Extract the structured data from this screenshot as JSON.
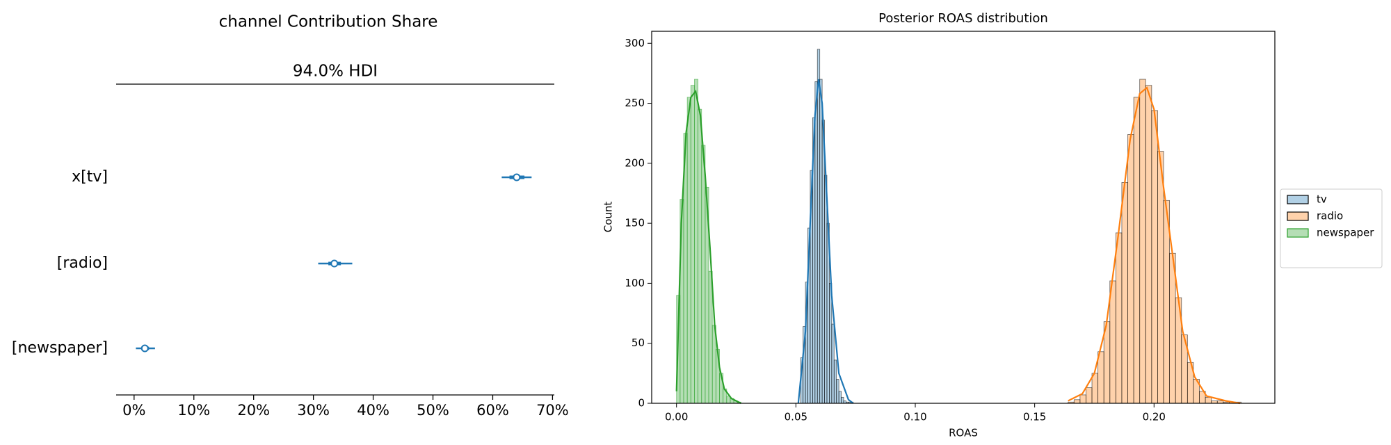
{
  "chart_data": [
    {
      "type": "forest",
      "title": "channel Contribution Share",
      "subtitle": "94.0% HDI",
      "categories": [
        "x[tv]",
        "[radio]",
        "[newspaper]"
      ],
      "means": [
        64,
        33.5,
        1.8
      ],
      "hdi_low": [
        61.5,
        30.8,
        0.3
      ],
      "hdi_high": [
        66.5,
        36.5,
        3.5
      ],
      "inner_low": [
        62.8,
        32.5,
        1.2
      ],
      "inner_high": [
        65.3,
        34.6,
        2.5
      ],
      "color": "#1f77b4",
      "xlim": [
        -3,
        70.3
      ],
      "xticks": [
        {
          "value": 0,
          "label": "0%"
        },
        {
          "value": 10,
          "label": "10%"
        },
        {
          "value": 20,
          "label": "20%"
        },
        {
          "value": 30,
          "label": "30%"
        },
        {
          "value": 40,
          "label": "40%"
        },
        {
          "value": 50,
          "label": "50%"
        },
        {
          "value": 60,
          "label": "60%"
        },
        {
          "value": 70,
          "label": "70%"
        }
      ]
    },
    {
      "type": "histogram",
      "title": "Posterior ROAS distribution",
      "xlabel": "ROAS",
      "ylabel": "Count",
      "xlim": [
        -0.0104,
        0.2506
      ],
      "ylim": [
        0,
        310
      ],
      "xticks": [
        {
          "value": 0,
          "label": "0.00"
        },
        {
          "value": 0.05,
          "label": "0.05"
        },
        {
          "value": 0.1,
          "label": "0.10"
        },
        {
          "value": 0.15,
          "label": "0.15"
        },
        {
          "value": 0.2,
          "label": "0.20"
        }
      ],
      "yticks": [
        0,
        50,
        100,
        150,
        200,
        250,
        300
      ],
      "legend": "outside-right",
      "series": [
        {
          "name": "tv",
          "color": "#1f77b4",
          "edgecolor": "#000000",
          "bins": [
            0.052,
            0.053,
            0.054,
            0.055,
            0.056,
            0.057,
            0.058,
            0.059,
            0.06,
            0.061,
            0.062,
            0.063,
            0.064,
            0.065,
            0.066,
            0.067,
            0.068,
            0.069,
            0.07,
            0.071,
            0.072,
            0.073,
            0.074
          ],
          "values": [
            38,
            64,
            101,
            146,
            194,
            238,
            268,
            295,
            270,
            236,
            190,
            150,
            100,
            66,
            36,
            20,
            10,
            5,
            2,
            1,
            1,
            1
          ],
          "kde_x": [
            0.051,
            0.054,
            0.056,
            0.058,
            0.0595,
            0.061,
            0.063,
            0.065,
            0.068,
            0.072,
            0.074
          ],
          "kde_y": [
            0,
            60,
            150,
            240,
            270,
            250,
            170,
            90,
            25,
            3,
            0
          ]
        },
        {
          "name": "radio",
          "color": "#ff7f0e",
          "edgecolor": "#000000",
          "bins": [
            0.164,
            0.1665,
            0.169,
            0.1715,
            0.174,
            0.1765,
            0.179,
            0.1815,
            0.184,
            0.1865,
            0.189,
            0.1915,
            0.194,
            0.1965,
            0.199,
            0.2015,
            0.204,
            0.2065,
            0.209,
            0.2115,
            0.214,
            0.2165,
            0.219,
            0.2215,
            0.224,
            0.2265,
            0.229,
            0.2315,
            0.234,
            0.2365
          ],
          "values": [
            1,
            3,
            7,
            13,
            25,
            43,
            68,
            102,
            142,
            184,
            224,
            255,
            270,
            265,
            244,
            210,
            169,
            125,
            88,
            57,
            34,
            20,
            10,
            5,
            2,
            2,
            1,
            1,
            1
          ],
          "kde_x": [
            0.164,
            0.17,
            0.175,
            0.18,
            0.185,
            0.19,
            0.194,
            0.197,
            0.2,
            0.204,
            0.208,
            0.212,
            0.217,
            0.222,
            0.23,
            0.236
          ],
          "kde_y": [
            2,
            8,
            25,
            65,
            140,
            220,
            258,
            263,
            245,
            180,
            120,
            60,
            22,
            6,
            2,
            0
          ]
        },
        {
          "name": "newspaper",
          "color": "#2ca02c",
          "edgecolor": "#2ca02c",
          "bins": [
            0,
            0.0015,
            0.003,
            0.0045,
            0.006,
            0.0075,
            0.009,
            0.0105,
            0.012,
            0.0135,
            0.015,
            0.0165,
            0.018,
            0.0195,
            0.021,
            0.0225,
            0.024,
            0.0255,
            0.027
          ],
          "values": [
            90,
            170,
            225,
            255,
            265,
            270,
            245,
            215,
            180,
            110,
            65,
            45,
            25,
            12,
            6,
            4,
            2,
            1
          ],
          "kde_x": [
            0,
            0.002,
            0.004,
            0.006,
            0.008,
            0.01,
            0.012,
            0.014,
            0.016,
            0.018,
            0.02,
            0.023,
            0.027
          ],
          "kde_y": [
            10,
            150,
            225,
            255,
            260,
            240,
            190,
            130,
            65,
            30,
            12,
            4,
            0
          ]
        }
      ]
    }
  ]
}
